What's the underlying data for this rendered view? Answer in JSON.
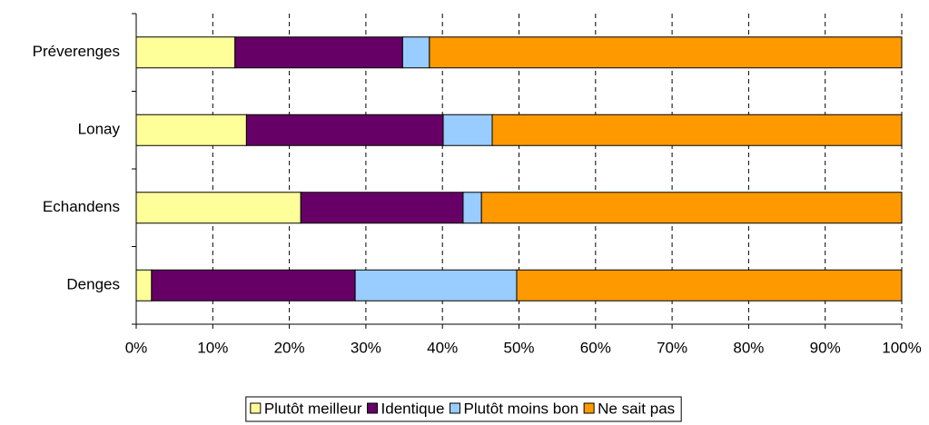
{
  "chart_data": {
    "type": "stacked_barh",
    "categories": [
      "Préverenges",
      "Lonay",
      "Echandens",
      "Denges"
    ],
    "series": [
      {
        "name": "Plutôt meilleur",
        "color": "#ffff99",
        "values": [
          12.9,
          14.4,
          21.5,
          2.0
        ]
      },
      {
        "name": "Identique",
        "color": "#660066",
        "values": [
          21.9,
          25.7,
          21.2,
          26.6
        ]
      },
      {
        "name": "Plutôt moins bon",
        "color": "#99ccff",
        "values": [
          3.5,
          6.4,
          2.4,
          21.1
        ]
      },
      {
        "name": "Ne sait pas",
        "color": "#ff9900",
        "values": [
          61.7,
          53.5,
          54.9,
          50.3
        ]
      }
    ],
    "xlim": [
      0,
      100
    ],
    "xticks": [
      {
        "value": 0,
        "label": "0%"
      },
      {
        "value": 10,
        "label": "10%"
      },
      {
        "value": 20,
        "label": "20%"
      },
      {
        "value": 30,
        "label": "30%"
      },
      {
        "value": 40,
        "label": "40%"
      },
      {
        "value": 50,
        "label": "50%"
      },
      {
        "value": 60,
        "label": "60%"
      },
      {
        "value": 70,
        "label": "70%"
      },
      {
        "value": 80,
        "label": "80%"
      },
      {
        "value": 90,
        "label": "90%"
      },
      {
        "value": 100,
        "label": "100%"
      }
    ],
    "grid": true,
    "legend": "bottom"
  }
}
